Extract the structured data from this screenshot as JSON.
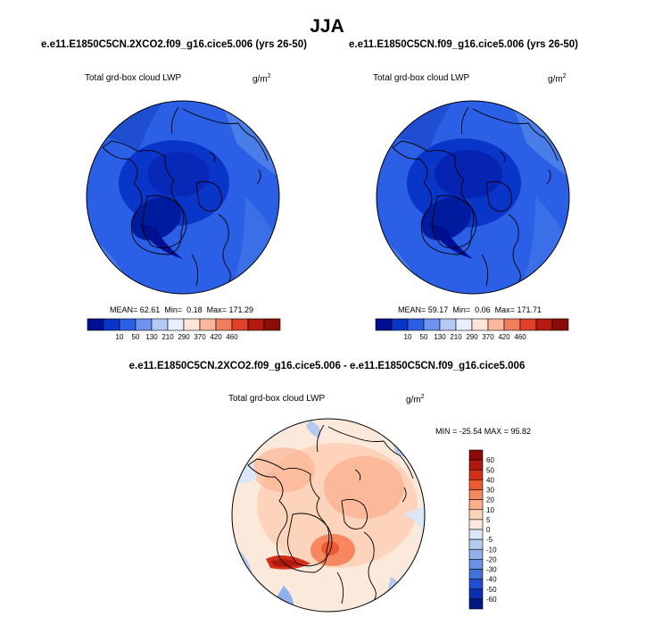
{
  "figure": {
    "title": "JJA"
  },
  "panels": [
    {
      "id": "left",
      "case_title": "e.e11.E1850C5CN.2XCO2.f09_g16.cice5.006 (yrs 26-50)",
      "variable": "Total grd-box cloud LWP",
      "units_base": "g/m",
      "units_exp": "2",
      "mean_label": "MEAN=",
      "mean": "62.61",
      "min_label": "Min=",
      "min": "0.18",
      "max_label": "Max=",
      "max": "171.29"
    },
    {
      "id": "right",
      "case_title": "e.e11.E1850C5CN.f09_g16.cice5.006 (yrs 26-50)",
      "variable": "Total grd-box cloud LWP",
      "units_base": "g/m",
      "units_exp": "2",
      "mean_label": "MEAN=",
      "mean": "59.17",
      "min_label": "Min=",
      "min": "0.06",
      "max_label": "Max=",
      "max": "171.71"
    }
  ],
  "difference": {
    "title": "e.e11.E1850C5CN.2XCO2.f09_g16.cice5.006 - e.e11.E1850C5CN.f09_g16.cice5.006",
    "variable": "Total grd-box cloud LWP",
    "units_base": "g/m",
    "units_exp": "2",
    "minmax_text": "MIN = -25.54 MAX =  95.82"
  },
  "chart_data": [
    {
      "type": "heatmap",
      "projection": "north polar stereographic",
      "title": "e.e11.E1850C5CN.2XCO2.f09_g16.cice5.006 (yrs 26-50)",
      "variable": "Total grd-box cloud LWP",
      "units": "g/m2",
      "stats": {
        "mean": 62.61,
        "min": 0.18,
        "max": 171.29
      },
      "colorbar": {
        "orientation": "horizontal",
        "levels": [
          10,
          50,
          130,
          210,
          290,
          370,
          420,
          460
        ],
        "tick_labels": [
          "10",
          "50",
          "130",
          "210",
          "290",
          "370",
          "420",
          "460"
        ],
        "colors": [
          "#000f91",
          "#0a35c9",
          "#2a5fe6",
          "#6d93ef",
          "#b3cbf5",
          "#e8eefc",
          "#fde4d6",
          "#f9b89d",
          "#f07d5e",
          "#de4028",
          "#b41a10",
          "#8a0e07"
        ]
      }
    },
    {
      "type": "heatmap",
      "projection": "north polar stereographic",
      "title": "e.e11.E1850C5CN.f09_g16.cice5.006 (yrs 26-50)",
      "variable": "Total grd-box cloud LWP",
      "units": "g/m2",
      "stats": {
        "mean": 59.17,
        "min": 0.06,
        "max": 171.71
      },
      "colorbar": {
        "orientation": "horizontal",
        "levels": [
          10,
          50,
          130,
          210,
          290,
          370,
          420,
          460
        ],
        "tick_labels": [
          "10",
          "50",
          "130",
          "210",
          "290",
          "370",
          "420",
          "460"
        ],
        "colors": [
          "#000f91",
          "#0a35c9",
          "#2a5fe6",
          "#6d93ef",
          "#b3cbf5",
          "#e8eefc",
          "#fde4d6",
          "#f9b89d",
          "#f07d5e",
          "#de4028",
          "#b41a10",
          "#8a0e07"
        ]
      }
    },
    {
      "type": "heatmap",
      "projection": "north polar stereographic",
      "title": "e.e11.E1850C5CN.2XCO2.f09_g16.cice5.006 - e.e11.E1850C5CN.f09_g16.cice5.006",
      "variable": "Total grd-box cloud LWP",
      "units": "g/m2",
      "stats": {
        "min": -25.54,
        "max": 95.82
      },
      "colorbar": {
        "orientation": "vertical",
        "levels": [
          60,
          50,
          40,
          30,
          20,
          10,
          5,
          0,
          -5,
          -10,
          -20,
          -30,
          -40,
          -50,
          -60
        ],
        "tick_labels": [
          "60",
          "50",
          "40",
          "30",
          "20",
          "10",
          "5",
          "0",
          "-5",
          "-10",
          "-20",
          "-30",
          "-40",
          "-50",
          "-60"
        ],
        "colors": [
          "#8b0a05",
          "#b1180d",
          "#d33018",
          "#ec5b34",
          "#f6875e",
          "#fbae8a",
          "#fdd3bb",
          "#fbe9dc",
          "#dbe7f7",
          "#b4cbef",
          "#8fb0ea",
          "#6a92e3",
          "#4472dc",
          "#1f4ed0",
          "#0a2fb0",
          "#00187f"
        ]
      }
    }
  ]
}
